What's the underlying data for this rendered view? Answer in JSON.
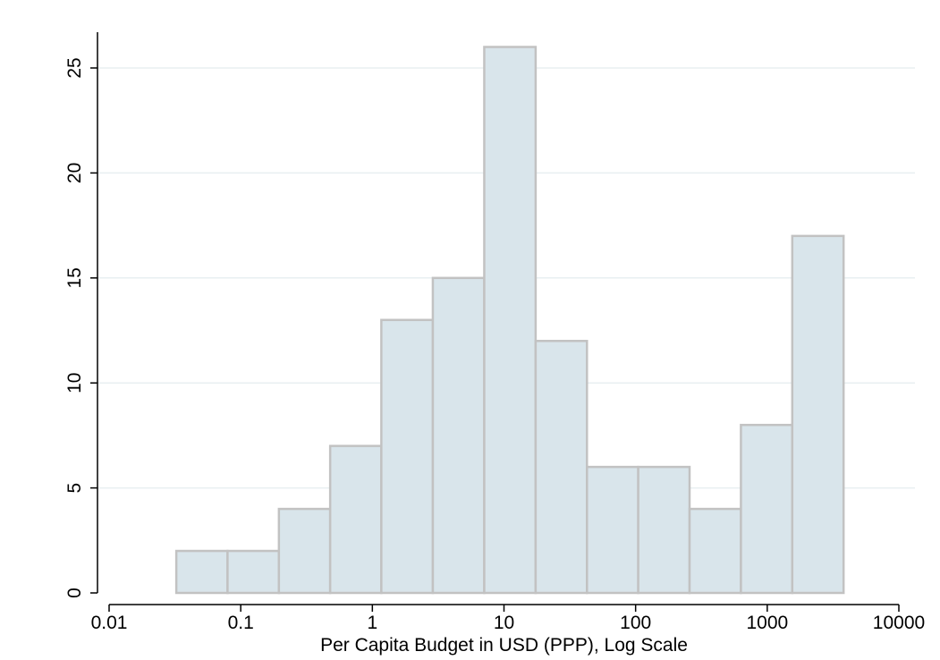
{
  "chart_data": {
    "type": "histogram",
    "title": "",
    "xlabel": "Per Capita Budget in USD (PPP), Log Scale",
    "ylabel": "",
    "x_scale": "log",
    "xlim": [
      0.01,
      10000
    ],
    "ylim": [
      0,
      26
    ],
    "x_ticks": [
      {
        "value": 0.01,
        "label": "0.01"
      },
      {
        "value": 0.1,
        "label": "0.1"
      },
      {
        "value": 1,
        "label": "1"
      },
      {
        "value": 10,
        "label": "10"
      },
      {
        "value": 100,
        "label": "100"
      },
      {
        "value": 1000,
        "label": "1000"
      },
      {
        "value": 10000,
        "label": "10000"
      }
    ],
    "y_ticks": [
      {
        "value": 0,
        "label": "0"
      },
      {
        "value": 5,
        "label": "5"
      },
      {
        "value": 10,
        "label": "10"
      },
      {
        "value": 15,
        "label": "15"
      },
      {
        "value": 20,
        "label": "20"
      },
      {
        "value": 25,
        "label": "25"
      }
    ],
    "grid": "horizontal",
    "bins": [
      {
        "x0": 0.0324,
        "x1": 0.0794,
        "count": 2
      },
      {
        "x0": 0.0794,
        "x1": 0.195,
        "count": 2
      },
      {
        "x0": 0.195,
        "x1": 0.478,
        "count": 4
      },
      {
        "x0": 0.478,
        "x1": 1.17,
        "count": 7
      },
      {
        "x0": 1.17,
        "x1": 2.88,
        "count": 13
      },
      {
        "x0": 2.88,
        "x1": 7.08,
        "count": 15
      },
      {
        "x0": 7.08,
        "x1": 17.4,
        "count": 26
      },
      {
        "x0": 17.4,
        "x1": 42.7,
        "count": 12
      },
      {
        "x0": 42.7,
        "x1": 104.7,
        "count": 6
      },
      {
        "x0": 104.7,
        "x1": 257,
        "count": 6
      },
      {
        "x0": 257,
        "x1": 631,
        "count": 4
      },
      {
        "x0": 631,
        "x1": 1549,
        "count": 8
      },
      {
        "x0": 1549,
        "x1": 3802,
        "count": 17
      }
    ],
    "colors": {
      "bar_fill": "#d9e5eb",
      "bar_stroke": "#c2c2c2",
      "grid": "#e8eff1",
      "axis": "#000000"
    }
  }
}
